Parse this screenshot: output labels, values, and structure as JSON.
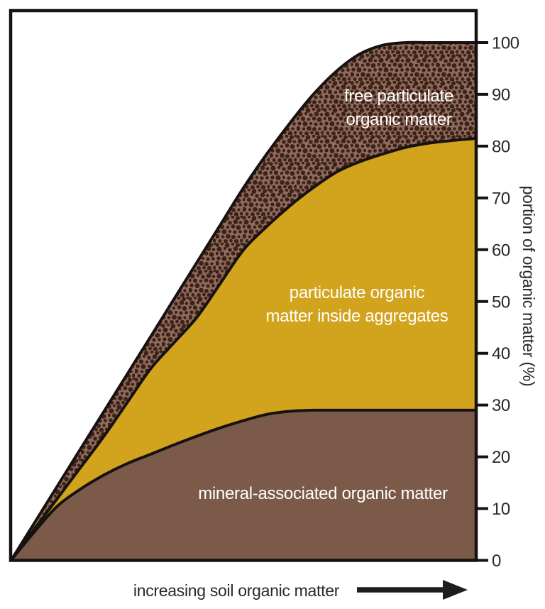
{
  "labels": {
    "free_pom_line1": "free particulate",
    "free_pom_line2": "organic matter",
    "aggregate_pom_line1": "particulate organic",
    "aggregate_pom_line2": "matter inside aggregates",
    "maom": "mineral-associated organic matter",
    "x_axis": "increasing soil organic matter",
    "y_axis": "portion of organic matter (%)"
  },
  "colors": {
    "line": "#171210",
    "tick_text": "#2b2826",
    "area_label_text": "#ffffff",
    "mineral_brown": "#7b5a4a",
    "aggregate_gold": "#d2a31d",
    "speckle_base": "#8e6c5e",
    "speckle_dot": "#3e2217"
  },
  "chart_data": {
    "type": "area",
    "stacked": true,
    "title": "",
    "x_axis": {
      "label": "increasing soil organic matter",
      "has_direction_arrow": true,
      "numeric_ticks": false
    },
    "y_axis": {
      "label": "portion of organic matter (%)",
      "side": "right",
      "range": [
        0,
        100
      ],
      "ticks": [
        0,
        10,
        20,
        30,
        40,
        50,
        60,
        70,
        80,
        90,
        100
      ]
    },
    "x_percent": [
      0,
      5,
      10,
      15,
      20,
      25,
      30,
      35,
      40,
      45,
      50,
      55,
      60,
      65,
      70,
      75,
      80,
      85,
      90,
      95,
      100
    ],
    "series": [
      {
        "name": "mineral-associated organic matter",
        "fill": "#7b5a4a",
        "texture": "solid",
        "cumulative_percent": [
          0,
          5.5,
          10.5,
          13.8,
          16.5,
          18.7,
          20.5,
          22.3,
          24,
          25.6,
          27,
          28.2,
          28.8,
          29,
          29,
          29,
          29,
          29,
          29,
          29,
          29
        ]
      },
      {
        "name": "particulate organic matter inside aggregates",
        "fill": "#d2a31d",
        "texture": "solid",
        "cumulative_percent": [
          0,
          6,
          12,
          18,
          24,
          30.5,
          37,
          42,
          47,
          53.5,
          60,
          64.5,
          68.5,
          72,
          75,
          77,
          78.5,
          79.8,
          80.6,
          81.1,
          81.5
        ]
      },
      {
        "name": "free particulate organic matter",
        "fill": "#8e6c5e",
        "dot_fill": "#3e2217",
        "texture": "speckled",
        "cumulative_percent": [
          0,
          7.2,
          14.4,
          21.6,
          28.8,
          36,
          43.2,
          50.4,
          57.6,
          64.8,
          72,
          78.5,
          84.5,
          90,
          94.5,
          97.8,
          99.5,
          100,
          100,
          100,
          100
        ]
      }
    ]
  }
}
